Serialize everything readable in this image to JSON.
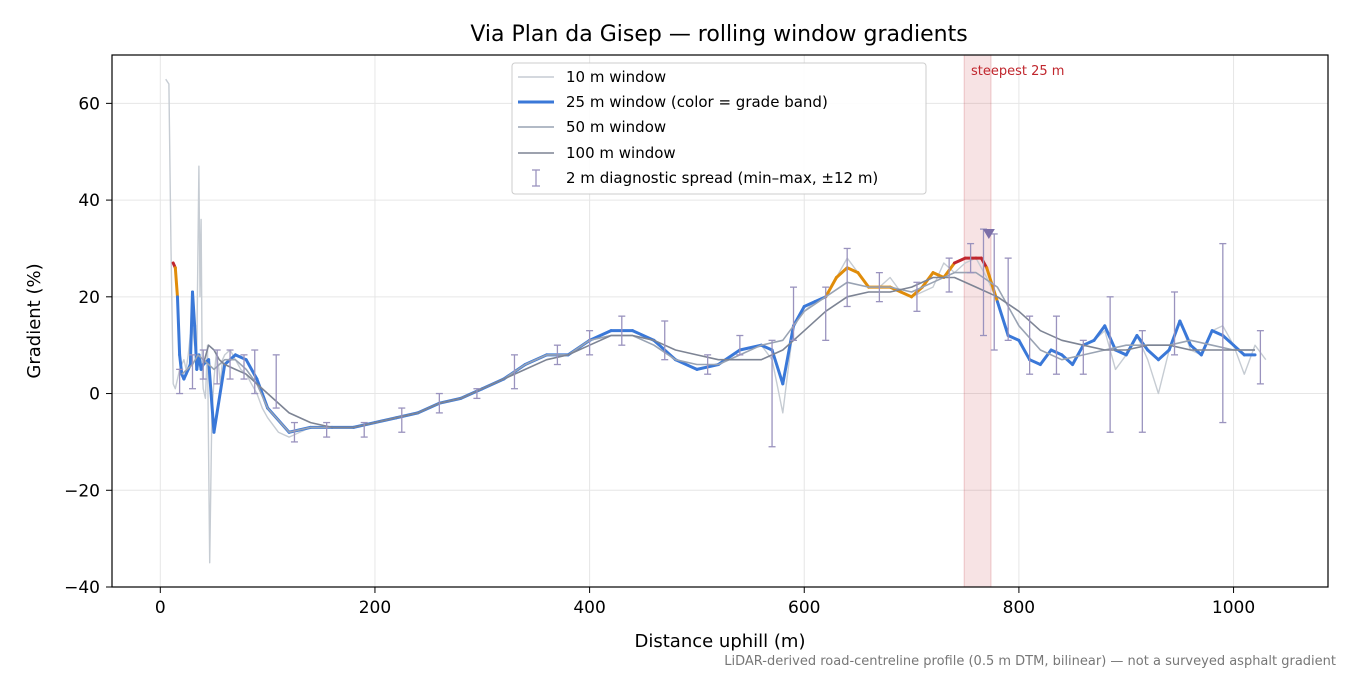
{
  "chart_data": {
    "type": "line",
    "title": "Via Plan da Gisep — rolling window gradients",
    "xlabel": "Distance uphill (m)",
    "ylabel": "Gradient (%)",
    "xlim": [
      -45,
      1088
    ],
    "ylim": [
      -40,
      70
    ],
    "xticks": [
      0,
      200,
      400,
      600,
      800,
      1000
    ],
    "yticks": [
      -40,
      -20,
      0,
      20,
      40,
      60
    ],
    "xtick_labels": [
      "0",
      "200",
      "400",
      "600",
      "800",
      "1000"
    ],
    "ytick_labels": [
      "−40",
      "−20",
      "0",
      "20",
      "40",
      "60"
    ],
    "grid": true,
    "legend_position": "top-center",
    "footnote": "LiDAR-derived road-centreline profile (0.5 m DTM, bilinear) — not a surveyed asphalt gradient",
    "steepest_span": {
      "label": "steepest 25 m",
      "x0": 749,
      "x1": 774,
      "marker_x": 772,
      "marker_y": 33
    },
    "grade_band_colors": {
      "low": "#3a78d8",
      "mid": "#e08c0a",
      "high": "#c0262d"
    },
    "grade_band_thresholds": [
      20,
      26
    ],
    "series": [
      {
        "name": "10 m window",
        "color": "#c6ccd3",
        "width": 1.4,
        "x": [
          5,
          8,
          10,
          12,
          14,
          16,
          18,
          20,
          22,
          24,
          26,
          28,
          30,
          32,
          34,
          36,
          37,
          38,
          39,
          40,
          42,
          44,
          46,
          48,
          50,
          52,
          54,
          56,
          58,
          60,
          65,
          70,
          75,
          80,
          85,
          90,
          95,
          100,
          110,
          120,
          130,
          140,
          160,
          180,
          200,
          220,
          240,
          260,
          280,
          300,
          320,
          340,
          360,
          380,
          400,
          420,
          440,
          460,
          480,
          500,
          520,
          540,
          560,
          570,
          580,
          590,
          600,
          610,
          620,
          630,
          640,
          650,
          660,
          670,
          680,
          690,
          700,
          710,
          720,
          730,
          740,
          750,
          760,
          770,
          780,
          790,
          800,
          810,
          820,
          830,
          840,
          850,
          860,
          870,
          880,
          890,
          900,
          910,
          920,
          930,
          940,
          950,
          960,
          970,
          980,
          990,
          1000,
          1010,
          1020,
          1030
        ],
        "y": [
          65,
          64,
          30,
          2,
          1,
          3,
          5,
          6,
          7,
          5,
          8,
          12,
          14,
          10,
          9,
          47,
          20,
          36,
          5,
          1,
          -1,
          10,
          -35,
          -5,
          3,
          8,
          6,
          2,
          7,
          8,
          9,
          7,
          5,
          4,
          2,
          0,
          -3,
          -5,
          -8,
          -9,
          -8,
          -7,
          -7,
          -7,
          -6,
          -5,
          -4,
          -2,
          -1,
          1,
          3,
          6,
          8,
          8,
          11,
          12,
          12,
          11,
          7,
          5,
          6,
          9,
          10,
          7,
          -4,
          14,
          17,
          19,
          20,
          24,
          28,
          25,
          22,
          22,
          24,
          21,
          20,
          21,
          22,
          27,
          25,
          27,
          28,
          24,
          19,
          12,
          11,
          7,
          6,
          9,
          8,
          6,
          10,
          11,
          13,
          5,
          8,
          12,
          7,
          0,
          9,
          15,
          9,
          8,
          13,
          14,
          10,
          4,
          10,
          7
        ]
      },
      {
        "name": "25 m window (color = grade band)",
        "color": "#3a78d8",
        "width": 3,
        "banded": true,
        "x": [
          12,
          14,
          16,
          18,
          20,
          22,
          24,
          26,
          28,
          30,
          32,
          34,
          36,
          38,
          40,
          45,
          50,
          60,
          70,
          80,
          90,
          100,
          120,
          140,
          160,
          180,
          200,
          220,
          240,
          260,
          280,
          300,
          320,
          340,
          360,
          380,
          400,
          420,
          440,
          460,
          480,
          500,
          520,
          540,
          560,
          570,
          580,
          590,
          600,
          610,
          620,
          630,
          640,
          650,
          660,
          670,
          680,
          690,
          700,
          710,
          720,
          730,
          740,
          750,
          760,
          765,
          770,
          780,
          790,
          800,
          810,
          820,
          830,
          840,
          850,
          860,
          870,
          880,
          890,
          900,
          910,
          920,
          930,
          940,
          950,
          960,
          970,
          980,
          990,
          1000,
          1010,
          1020
        ],
        "y": [
          27,
          26,
          20,
          8,
          4,
          3,
          4,
          5,
          6,
          21,
          14,
          5,
          8,
          5,
          6,
          7,
          -8,
          6,
          8,
          7,
          3,
          -3,
          -8,
          -7,
          -7,
          -7,
          -6,
          -5,
          -4,
          -2,
          -1,
          1,
          3,
          6,
          8,
          8,
          11,
          13,
          13,
          11,
          7,
          5,
          6,
          9,
          10,
          9,
          2,
          14,
          18,
          19,
          20,
          24,
          26,
          25,
          22,
          22,
          22,
          21,
          20,
          22,
          25,
          24,
          27,
          28,
          28,
          28,
          26,
          19,
          12,
          11,
          7,
          6,
          9,
          8,
          6,
          10,
          11,
          14,
          9,
          8,
          12,
          9,
          7,
          9,
          15,
          10,
          8,
          13,
          12,
          10,
          8,
          8
        ]
      },
      {
        "name": "50 m window",
        "color": "#99a3b3",
        "width": 1.6,
        "x": [
          20,
          25,
          30,
          35,
          40,
          45,
          50,
          60,
          70,
          80,
          90,
          100,
          120,
          140,
          160,
          180,
          200,
          220,
          240,
          260,
          280,
          300,
          320,
          340,
          360,
          380,
          400,
          420,
          440,
          460,
          480,
          500,
          520,
          540,
          560,
          580,
          600,
          620,
          640,
          660,
          680,
          700,
          720,
          740,
          760,
          780,
          800,
          820,
          840,
          860,
          880,
          900,
          920,
          940,
          960,
          980,
          1000,
          1020
        ],
        "y": [
          4,
          5,
          6,
          8,
          7,
          6,
          5,
          7,
          7,
          5,
          2,
          -3,
          -8,
          -7,
          -7,
          -7,
          -6,
          -5,
          -4,
          -2,
          -1,
          1,
          3,
          6,
          8,
          8,
          11,
          12,
          12,
          10,
          7,
          6,
          6,
          8,
          10,
          11,
          17,
          20,
          23,
          22,
          22,
          21,
          23,
          25,
          25,
          22,
          14,
          9,
          7,
          8,
          9,
          10,
          10,
          10,
          11,
          10,
          9,
          9
        ]
      },
      {
        "name": "100 m window",
        "color": "#7d8494",
        "width": 1.6,
        "x": [
          40,
          45,
          50,
          55,
          60,
          70,
          80,
          90,
          100,
          120,
          140,
          160,
          180,
          200,
          220,
          240,
          260,
          280,
          300,
          320,
          340,
          360,
          380,
          400,
          420,
          440,
          460,
          480,
          500,
          520,
          540,
          560,
          580,
          600,
          620,
          640,
          660,
          680,
          700,
          720,
          740,
          760,
          780,
          800,
          820,
          840,
          860,
          880,
          900,
          920,
          940,
          960,
          980,
          1000,
          1020
        ],
        "y": [
          6,
          10,
          9,
          7,
          6,
          5,
          4,
          2,
          0,
          -4,
          -6,
          -7,
          -7,
          -6,
          -5,
          -4,
          -2,
          -1,
          1,
          3,
          5,
          7,
          8,
          10,
          12,
          12,
          11,
          9,
          8,
          7,
          7,
          7,
          9,
          13,
          17,
          20,
          21,
          21,
          22,
          24,
          24,
          22,
          20,
          17,
          13,
          11,
          10,
          9,
          9,
          10,
          10,
          9,
          9,
          9,
          9
        ]
      },
      {
        "name": "2 m diagnostic spread (min–max, ±12 m)",
        "color": "#9a93be",
        "errorbar": true,
        "x": [
          18,
          30,
          40,
          53,
          65,
          78,
          88,
          108,
          125,
          155,
          190,
          225,
          260,
          295,
          330,
          370,
          400,
          430,
          470,
          510,
          540,
          570,
          590,
          620,
          640,
          670,
          705,
          735,
          755,
          767,
          777,
          790,
          810,
          835,
          860,
          885,
          915,
          945,
          990,
          1025
        ],
        "ymin": [
          0,
          1,
          3,
          2,
          3,
          3,
          0,
          -3,
          -10,
          -9,
          -9,
          -8,
          -4,
          -1,
          1,
          6,
          8,
          10,
          7,
          4,
          8,
          -11,
          11,
          11,
          18,
          19,
          17,
          21,
          25,
          12,
          9,
          11,
          4,
          4,
          4,
          -8,
          -8,
          8,
          -6,
          2
        ],
        "ymax": [
          5,
          8,
          9,
          9,
          9,
          8,
          9,
          8,
          -6,
          -6,
          -6,
          -3,
          0,
          1,
          8,
          10,
          13,
          16,
          15,
          8,
          12,
          11,
          22,
          22,
          30,
          25,
          23,
          28,
          31,
          34,
          33,
          28,
          16,
          16,
          11,
          20,
          13,
          21,
          31,
          13
        ]
      }
    ]
  }
}
